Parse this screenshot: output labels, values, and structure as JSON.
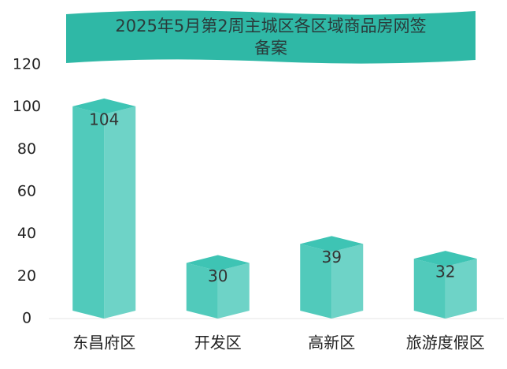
{
  "chart_data": {
    "type": "bar3d",
    "title": "2025年5月第2周主城区各区域商品房网签备案",
    "categories": [
      "东昌府区",
      "开发区",
      "高新区",
      "旅游度假区"
    ],
    "values": [
      104,
      30,
      39,
      32
    ],
    "color": "#3ec4b4",
    "ylim": [
      0,
      120
    ],
    "yticks": [
      0,
      20,
      40,
      60,
      80,
      100,
      120
    ]
  }
}
